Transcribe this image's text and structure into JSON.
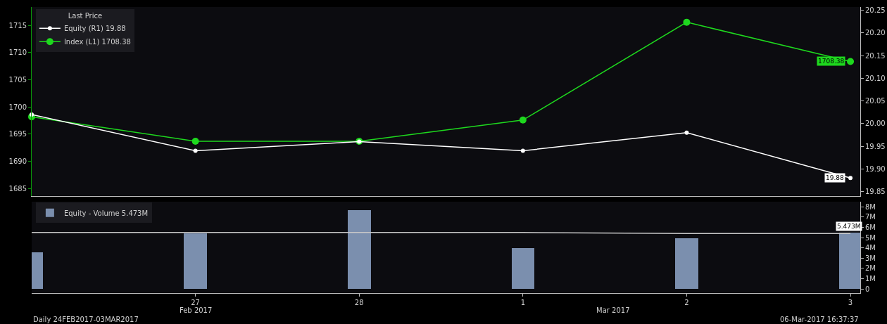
{
  "chart_data": [
    {
      "type": "line",
      "categories": [
        null,
        "27",
        "28",
        "1",
        "2",
        "3"
      ],
      "legend_title": "Last Price",
      "legend": "top left",
      "marker": "circle",
      "line_style": "solid",
      "tick_labels": "y",
      "ylim": [
        1683.6,
        1718.4
      ],
      "yticks": [
        1685,
        1690,
        1695,
        1700,
        1705,
        1710,
        1715
      ],
      "y2lim": [
        19.84,
        20.257
      ],
      "y2ticks": [
        19.85,
        {
          "value": 19.9,
          "label": "19.90"
        },
        19.95,
        {
          "value": 20.0,
          "label": "20.00"
        },
        20.05,
        {
          "value": 20.1,
          "label": "20.10"
        },
        20.15,
        {
          "value": 20.2,
          "label": "20.20"
        },
        20.25
      ],
      "series": [
        {
          "name": "Equity (R1) 19.88",
          "color": "#ffffff",
          "axis": "y2",
          "values": [
            20.02,
            19.94,
            19.96,
            19.94,
            19.98,
            19.88
          ],
          "value_labels": [
            null,
            null,
            null,
            null,
            null,
            "19.88"
          ]
        },
        {
          "name": "Index (L1) 1708.38",
          "color": "#1ed81e",
          "axis": "y",
          "values": [
            1698.2,
            1693.7,
            1693.7,
            1697.6,
            1715.6,
            1708.38
          ],
          "value_labels": [
            null,
            null,
            null,
            null,
            null,
            "1708.38"
          ]
        }
      ]
    },
    {
      "type": "bar",
      "categories": [
        null,
        "27",
        "28",
        "1",
        "2",
        "3"
      ],
      "legend": "top left",
      "ylim": [
        -0.4,
        8.5
      ],
      "yticks": [
        0,
        {
          "value": 1,
          "label": "1M"
        },
        {
          "value": 2,
          "label": "2M"
        },
        {
          "value": 3,
          "label": "3M"
        },
        {
          "value": 4,
          "label": "4M"
        },
        {
          "value": 5,
          "label": "5M"
        },
        {
          "value": 6,
          "label": "6M"
        },
        {
          "value": 7,
          "label": "7M"
        },
        {
          "value": 8,
          "label": "8M"
        }
      ],
      "series": [
        {
          "name": "Equity - Volume 5.473M",
          "color": "#7b8fae",
          "values": [
            3.57,
            5.42,
            7.66,
            3.97,
            4.96,
            5.473
          ],
          "value_labels": [
            null,
            null,
            null,
            null,
            null,
            "5.473M"
          ]
        },
        {
          "type": "line",
          "color": "#c8c8c8",
          "values": [
            5.5,
            5.5,
            5.5,
            5.5,
            5.4,
            5.4
          ]
        }
      ],
      "annotations": [
        "Feb 2017",
        "Mar 2017",
        "Daily 24FEB2017-03MAR2017",
        "06-Mar-2017 16:37:37"
      ]
    }
  ]
}
